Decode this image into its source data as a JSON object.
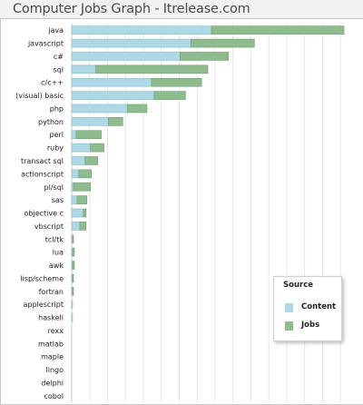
{
  "page": {
    "title": "Computer Jobs Graph - Itrelease.com"
  },
  "colors": {
    "content": "#add8e6",
    "jobs": "#8fbc8f",
    "grid": "#e6e6e6"
  },
  "chart_data": {
    "type": "bar",
    "orientation": "horizontal",
    "stacked": true,
    "categories": [
      "java",
      "javascript",
      "c#",
      "sql",
      "c/c++",
      "(visual) basic",
      "php",
      "python",
      "perl",
      "ruby",
      "transact sql",
      "actionscript",
      "pl/sql",
      "sas",
      "objective c",
      "vbscript",
      "tcl/tk",
      "lua",
      "awk",
      "lisp/scheme",
      "fortran",
      "applescript",
      "haskell",
      "rexx",
      "matlab",
      "maple",
      "lingo",
      "delphi",
      "cobol"
    ],
    "series": [
      {
        "name": "Content",
        "values": [
          156,
          133,
          121,
          27,
          89,
          92,
          62,
          41,
          5,
          21,
          15,
          8,
          2,
          6,
          13,
          9,
          1,
          1,
          1,
          1,
          1,
          1,
          1,
          0,
          0,
          0,
          0,
          0,
          0
        ]
      },
      {
        "name": "Jobs",
        "values": [
          148,
          71,
          54,
          125,
          56,
          35,
          22,
          16,
          28,
          15,
          14,
          14,
          19,
          11,
          3,
          7,
          1,
          2,
          2,
          1,
          1,
          0,
          0,
          0,
          0,
          0,
          0,
          0,
          0
        ]
      }
    ],
    "xlim": [
      0,
      310
    ],
    "grid": true,
    "legend": {
      "title": "Source",
      "position": "bottom-right"
    }
  }
}
